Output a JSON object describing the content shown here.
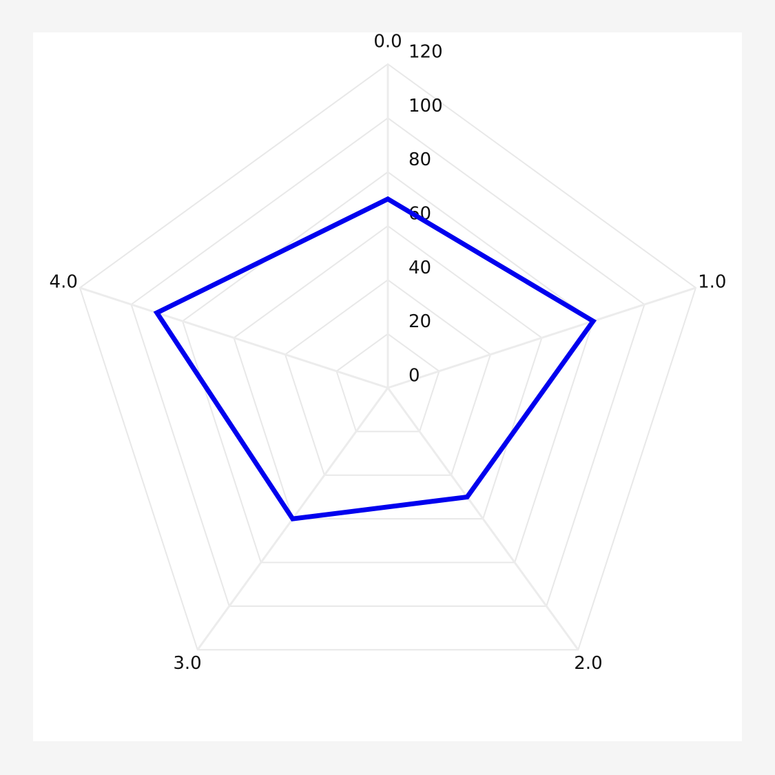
{
  "chart_data": {
    "type": "radar",
    "categories": [
      "0.0",
      "1.0",
      "2.0",
      "3.0",
      "4.0"
    ],
    "series": [
      {
        "color": "#0000ee",
        "values": [
          70,
          80,
          50,
          60,
          90
        ]
      }
    ],
    "ylim": [
      0,
      120
    ],
    "yticks": [
      0,
      20,
      40,
      60,
      80,
      100,
      120
    ],
    "grid": true
  }
}
